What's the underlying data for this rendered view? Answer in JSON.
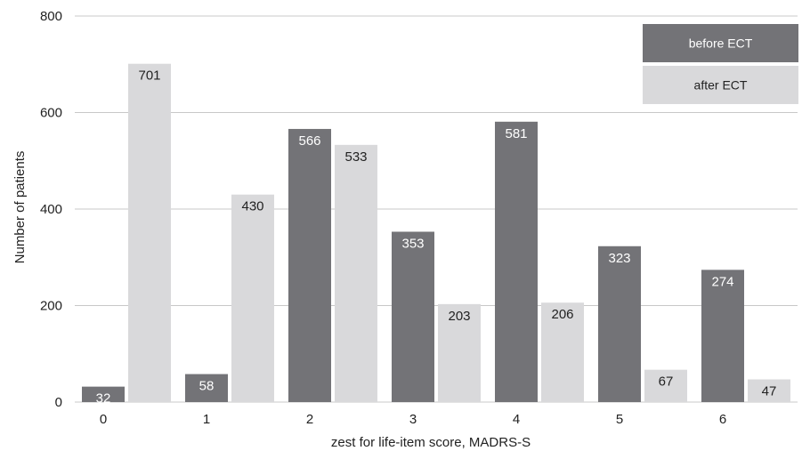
{
  "chart_data": {
    "type": "bar",
    "xlabel": "zest for life-item score, MADRS-S",
    "ylabel": "Number of patients",
    "categories": [
      "0",
      "1",
      "2",
      "3",
      "4",
      "5",
      "6"
    ],
    "ylim": [
      0,
      800
    ],
    "yticks": [
      0,
      200,
      400,
      600,
      800
    ],
    "grid": true,
    "legend_position": "top-right",
    "series": [
      {
        "name": "before ECT",
        "color": "#737377",
        "values": [
          32,
          58,
          566,
          353,
          581,
          323,
          274
        ]
      },
      {
        "name": "after ECT",
        "color": "#d9d9db",
        "values": [
          701,
          430,
          533,
          203,
          206,
          67,
          47
        ]
      }
    ]
  },
  "colors": {
    "gridline": "#c8c8c8",
    "label_on_dark": "#ffffff",
    "label_on_light": "#222222"
  }
}
